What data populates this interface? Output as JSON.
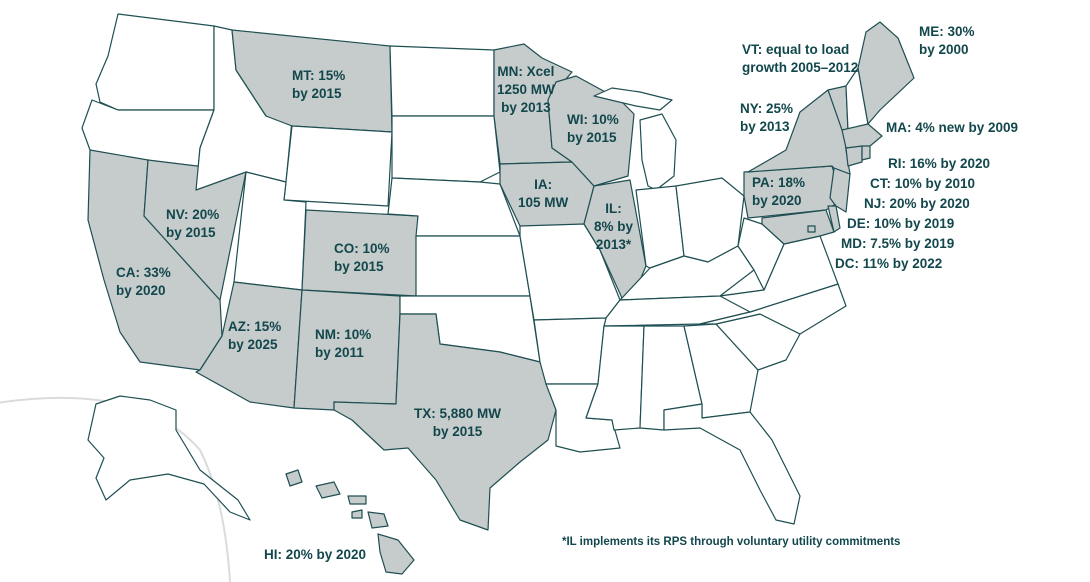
{
  "colors": {
    "rps_state_fill": "#c6cbcc",
    "other_state_fill": "#ffffff",
    "border": "#1f4f52",
    "text": "#12474c"
  },
  "states_with_rps": [
    "ME",
    "VT",
    "NY",
    "MA",
    "RI",
    "CT",
    "NJ",
    "PA",
    "DE",
    "MD",
    "DC",
    "MN",
    "WI",
    "IA",
    "IL",
    "MT",
    "NV",
    "CA",
    "CO",
    "AZ",
    "NM",
    "TX",
    "HI"
  ],
  "labels": {
    "ME": "ME: 30%\nby 2000",
    "VT": "VT: equal to load\ngrowth 2005–2012",
    "NY": "NY: 25%\nby 2013",
    "MA": "MA: 4% new by 2009",
    "RI": "RI: 16% by 2020",
    "CT": "CT: 10% by 2010",
    "NJ": "NJ: 20% by 2020",
    "DE": "DE: 10% by 2019",
    "MD": "MD: 7.5% by 2019",
    "DC": "DC: 11% by 2022",
    "PA": "PA: 18%\nby 2020",
    "MN": "MN: Xcel\n1250 MW\nby 2013",
    "WI": "WI: 10%\nby 2015",
    "IA": "IA:\n105 MW",
    "IL": "IL:\n8% by\n2013*",
    "MT": "MT: 15%\nby 2015",
    "NV": "NV: 20%\nby 2015",
    "CA": "CA: 33%\nby 2020",
    "CO": "CO: 10%\nby 2015",
    "AZ": "AZ: 15%\nby 2025",
    "NM": "NM: 10%\nby 2011",
    "TX": "TX: 5,880 MW\nby 2015",
    "HI": "HI: 20% by 2020"
  },
  "footnote": "*IL implements its RPS through voluntary utility commitments"
}
